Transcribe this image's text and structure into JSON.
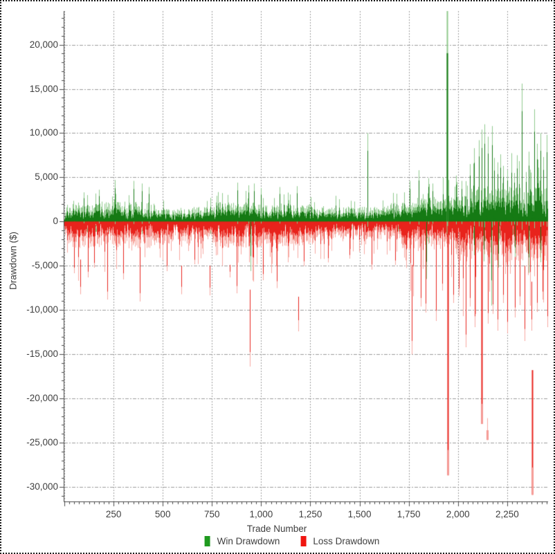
{
  "chart_data": {
    "type": "bar",
    "title": "",
    "xlabel": "Trade Number",
    "ylabel": "Drawdown ($)",
    "x_range": [
      0,
      2458
    ],
    "y_range": [
      -31650,
      23800
    ],
    "grid": "dashed",
    "legend_position": "bottom-center",
    "x_ticks": [
      {
        "v": 250,
        "label": "250"
      },
      {
        "v": 500,
        "label": "500"
      },
      {
        "v": 750,
        "label": "750"
      },
      {
        "v": 1000,
        "label": "1,000"
      },
      {
        "v": 1250,
        "label": "1,250"
      },
      {
        "v": 1500,
        "label": "1,500"
      },
      {
        "v": 1750,
        "label": "1,750"
      },
      {
        "v": 2000,
        "label": "2,000"
      },
      {
        "v": 2250,
        "label": "2,250"
      }
    ],
    "y_ticks": [
      {
        "v": 20000,
        "label": "20,000"
      },
      {
        "v": 15000,
        "label": "15,000"
      },
      {
        "v": 10000,
        "label": "10,000"
      },
      {
        "v": 5000,
        "label": "5,000"
      },
      {
        "v": 0,
        "label": "0"
      },
      {
        "v": -5000,
        "label": "-5,000"
      },
      {
        "v": -10000,
        "label": "-10,000"
      },
      {
        "v": -15000,
        "label": "-15,000"
      },
      {
        "v": -20000,
        "label": "-20,000"
      },
      {
        "v": -25000,
        "label": "-25,000"
      },
      {
        "v": -30000,
        "label": "-30,000"
      }
    ],
    "x_minor_tick_step": 25,
    "y_minor_tick_step": 1000,
    "extra_vgrid_at": [
      0
    ],
    "trade_count": 2455,
    "seed": 1337,
    "legend": [
      {
        "label": "Win Drawdown",
        "color": "#1f9a1f"
      },
      {
        "label": "Loss Drawdown",
        "color": "#f01510"
      }
    ],
    "series": {
      "win": {
        "name": "Win Drawdown",
        "color_strong": "#157a14",
        "color_light": "#8fca8c",
        "envelope": [
          [
            1,
            150,
            1500,
            3300
          ],
          [
            150,
            460,
            1700,
            4200
          ],
          [
            460,
            630,
            1050,
            2500
          ],
          [
            630,
            770,
            1250,
            3000
          ],
          [
            770,
            1010,
            1650,
            4100
          ],
          [
            1010,
            1260,
            1400,
            3700
          ],
          [
            1260,
            1500,
            1200,
            3000
          ],
          [
            1500,
            1640,
            1250,
            3200
          ],
          [
            1640,
            1790,
            1600,
            4000
          ],
          [
            1790,
            1910,
            2100,
            5500
          ],
          [
            1910,
            2065,
            2200,
            5000
          ],
          [
            2065,
            2458,
            3000,
            8500
          ]
        ],
        "spikes": [
          [
            100,
            3300
          ],
          [
            175,
            3600
          ],
          [
            255,
            4700
          ],
          [
            350,
            4600
          ],
          [
            395,
            4300
          ],
          [
            430,
            3900
          ],
          [
            880,
            4400
          ],
          [
            935,
            4100
          ],
          [
            965,
            4300
          ],
          [
            1000,
            3800
          ],
          [
            1092,
            3900
          ],
          [
            1180,
            4000
          ],
          [
            1540,
            10000
          ],
          [
            1755,
            4600
          ],
          [
            1800,
            5800
          ],
          [
            1850,
            4900
          ],
          [
            1872,
            4300
          ],
          [
            1943,
            23800
          ],
          [
            1990,
            5200
          ],
          [
            2020,
            4600
          ],
          [
            2060,
            6500
          ],
          [
            2082,
            8300
          ],
          [
            2105,
            9200
          ],
          [
            2120,
            10400
          ],
          [
            2133,
            11000
          ],
          [
            2152,
            9600
          ],
          [
            2172,
            10800
          ],
          [
            2185,
            7200
          ],
          [
            2200,
            6700
          ],
          [
            2215,
            7600
          ],
          [
            2230,
            6300
          ],
          [
            2250,
            5800
          ],
          [
            2270,
            6900
          ],
          [
            2285,
            5500
          ],
          [
            2300,
            7500
          ],
          [
            2326,
            15600
          ],
          [
            2345,
            5600
          ],
          [
            2360,
            7900
          ],
          [
            2387,
            12700
          ],
          [
            2400,
            8800
          ],
          [
            2419,
            10000
          ],
          [
            2435,
            7300
          ],
          [
            2450,
            9800
          ]
        ],
        "tail_spikes": [
          [
            947,
            -5600
          ],
          [
            1838,
            -6500
          ],
          [
            2080,
            -3800
          ],
          [
            2130,
            -4500
          ],
          [
            2168,
            -9500
          ],
          [
            2205,
            -5200
          ],
          [
            2290,
            -4200
          ],
          [
            2360,
            -5800
          ],
          [
            2420,
            -4600
          ]
        ]
      },
      "loss": {
        "name": "Loss Drawdown",
        "color_strong": "#e8231c",
        "color_light": "#f7a8a0",
        "envelope": [
          [
            1,
            460,
            2400,
            6800
          ],
          [
            460,
            770,
            2000,
            5200
          ],
          [
            770,
            1060,
            2400,
            6800
          ],
          [
            1060,
            1270,
            2200,
            5800
          ],
          [
            1270,
            1710,
            1600,
            4300
          ],
          [
            1710,
            1965,
            2600,
            8500
          ],
          [
            1965,
            2458,
            3600,
            11500
          ]
        ],
        "spikes": [
          [
            50,
            0,
            -5800
          ],
          [
            81,
            -4300,
            -8200
          ],
          [
            120,
            0,
            -6300
          ],
          [
            150,
            0,
            -5200
          ],
          [
            218,
            -1200,
            -8800
          ],
          [
            300,
            0,
            -6500
          ],
          [
            384,
            -2900,
            -9000
          ],
          [
            520,
            0,
            -5600
          ],
          [
            595,
            -5000,
            -8200
          ],
          [
            660,
            0,
            -4800
          ],
          [
            740,
            -5000,
            -8300
          ],
          [
            842,
            -4900,
            -6300
          ],
          [
            875,
            0,
            -8100
          ],
          [
            943,
            -7700,
            -16400
          ],
          [
            1010,
            0,
            -6600
          ],
          [
            1080,
            0,
            -7500
          ],
          [
            1190,
            -8500,
            -12400
          ],
          [
            1218,
            0,
            -5000
          ],
          [
            1340,
            0,
            -4600
          ],
          [
            1450,
            0,
            -4200
          ],
          [
            1560,
            0,
            -5400
          ],
          [
            1680,
            0,
            -4900
          ],
          [
            1767,
            -4900,
            -15000
          ],
          [
            1810,
            0,
            -9600
          ],
          [
            1835,
            0,
            -10300
          ],
          [
            1890,
            0,
            -11200
          ],
          [
            1920,
            0,
            -7800
          ],
          [
            1947,
            -500,
            -28700
          ],
          [
            1975,
            0,
            -9200
          ],
          [
            2005,
            0,
            -8400
          ],
          [
            2038,
            -2000,
            -14200
          ],
          [
            2060,
            0,
            -9600
          ],
          [
            2085,
            0,
            -11900
          ],
          [
            2122,
            -2300,
            -22900
          ],
          [
            2150,
            -23600,
            -24700
          ],
          [
            2152,
            0,
            -11500
          ],
          [
            2175,
            0,
            -10400
          ],
          [
            2200,
            0,
            -12300
          ],
          [
            2228,
            0,
            -9200
          ],
          [
            2250,
            0,
            -12600
          ],
          [
            2290,
            -4000,
            -10800
          ],
          [
            2315,
            0,
            -9400
          ],
          [
            2340,
            -5000,
            -13500
          ],
          [
            2375,
            -6800,
            -12300
          ],
          [
            2376,
            -16800,
            -30900
          ],
          [
            2400,
            0,
            -10200
          ],
          [
            2430,
            0,
            -8800
          ],
          [
            2455,
            -1000,
            -11900
          ]
        ]
      }
    },
    "axis_color": "#4a4a4a",
    "grid_color": "#9b9b9b",
    "text_color": "#3e3e3e"
  }
}
